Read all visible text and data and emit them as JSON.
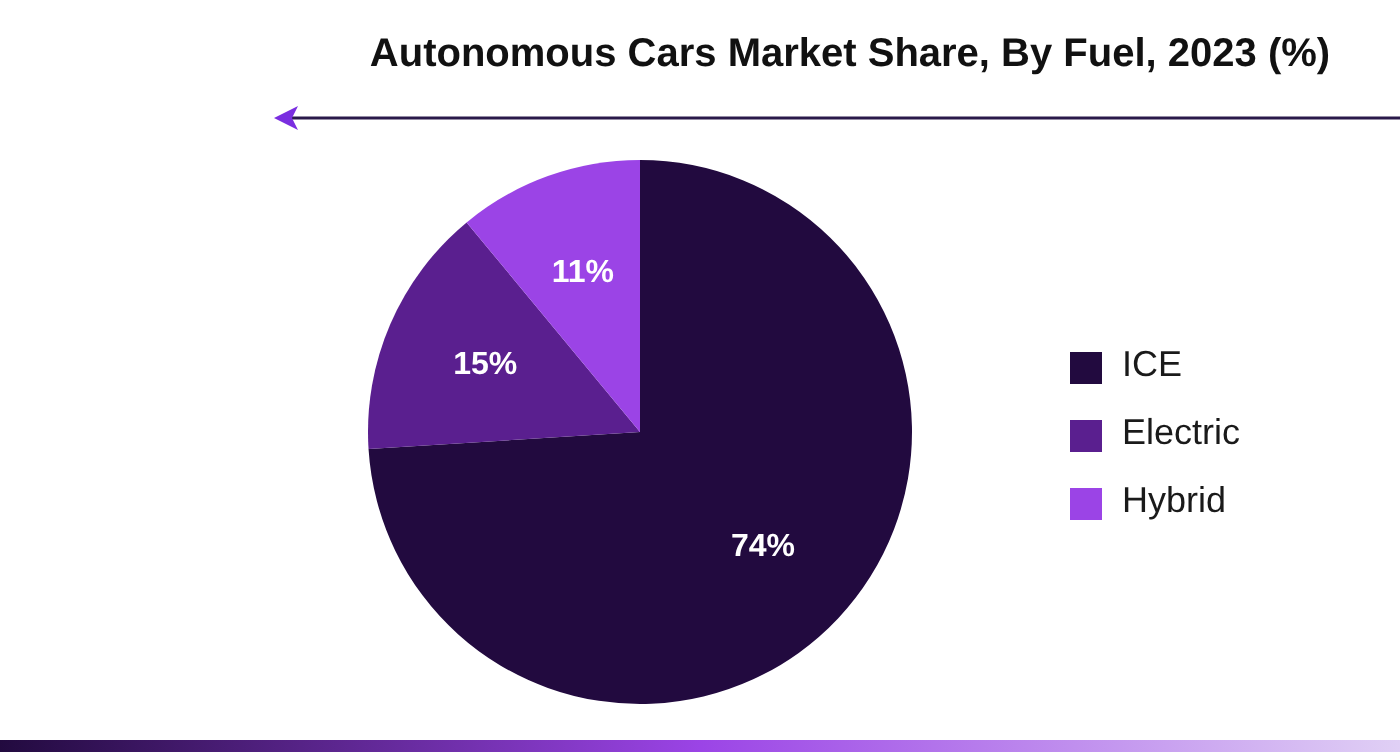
{
  "chart_data": {
    "type": "pie",
    "title": "Autonomous Cars Market Share, By Fuel, 2023 (%)",
    "categories": [
      "ICE",
      "Electric",
      "Hybrid"
    ],
    "values": [
      74,
      15,
      11
    ],
    "value_labels": [
      "74%",
      "15%",
      "11%"
    ],
    "colors": [
      "#220a3f",
      "#5a1f8f",
      "#9b44e6"
    ],
    "legend": "right"
  }
}
